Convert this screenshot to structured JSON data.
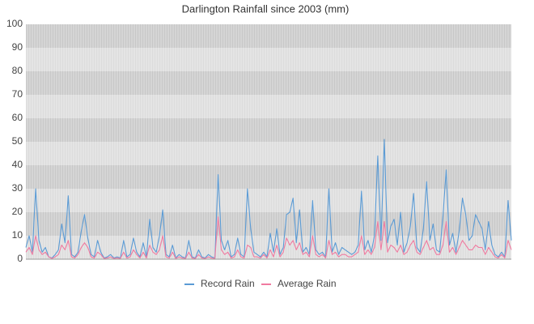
{
  "chart_data": {
    "type": "line",
    "title": "Darlington Rainfall since 2003 (mm)",
    "ylim": [
      0,
      100
    ],
    "yticks": [
      0,
      10,
      20,
      30,
      40,
      50,
      60,
      70,
      80,
      90,
      100
    ],
    "grid": true,
    "legend": "bottom",
    "series": [
      {
        "name": "Record Rain",
        "color": "#5b9bd5",
        "values": [
          5,
          10,
          3,
          30,
          8,
          3,
          5,
          1,
          0.5,
          2,
          4,
          15,
          7,
          27,
          2,
          1,
          3,
          12,
          19,
          9,
          2,
          1,
          8,
          3,
          0.5,
          1,
          2,
          0.5,
          1,
          0.5,
          8,
          1,
          2,
          9,
          3,
          1,
          7,
          1,
          17,
          5,
          3,
          10,
          21,
          2,
          1,
          6,
          0.5,
          2,
          1,
          0.5,
          8,
          1,
          0.5,
          4,
          1,
          0.5,
          2,
          1,
          0.5,
          36,
          8,
          4,
          8,
          1,
          2,
          9,
          2,
          1,
          30,
          13,
          3,
          2,
          1,
          3,
          1,
          11,
          3,
          13,
          2,
          5,
          19,
          20,
          26,
          7,
          21,
          3,
          5,
          2,
          25,
          4,
          2,
          3,
          1,
          30,
          3,
          7,
          2,
          5,
          4,
          3,
          2,
          3,
          6,
          29,
          4,
          8,
          3,
          10,
          44,
          8,
          51,
          7,
          14,
          17,
          6,
          20,
          3,
          7,
          14,
          28,
          5,
          3,
          13,
          33,
          8,
          15,
          4,
          3,
          18,
          38,
          6,
          11,
          3,
          12,
          26,
          19,
          8,
          10,
          19,
          16,
          13,
          4,
          16,
          6,
          2,
          1,
          3,
          1,
          25,
          8
        ]
      },
      {
        "name": "Average Rain",
        "color": "#f07aa0",
        "values": [
          3,
          5,
          2,
          10,
          4,
          2,
          3,
          1,
          0.3,
          1,
          2,
          6,
          4,
          8,
          1,
          0.5,
          2,
          5,
          7,
          5,
          1,
          0.5,
          3,
          2,
          0.3,
          0.5,
          1,
          0.3,
          0.5,
          0.3,
          3,
          0.5,
          1,
          4,
          2,
          0.5,
          3,
          0.5,
          6,
          3,
          2,
          4,
          10,
          1,
          0.5,
          3,
          0.3,
          1,
          0.5,
          0.3,
          3,
          0.5,
          0.3,
          2,
          0.5,
          0.3,
          1,
          0.5,
          0.3,
          18,
          4,
          2,
          3,
          0.5,
          1,
          4,
          1,
          0.5,
          6,
          5,
          1,
          1,
          0.5,
          2,
          0.5,
          4,
          1,
          6,
          1,
          3,
          9,
          6,
          8,
          4,
          7,
          2,
          3,
          1,
          10,
          2,
          1,
          2,
          0.5,
          8,
          2,
          3,
          1,
          2,
          2,
          1,
          1,
          2,
          3,
          10,
          2,
          4,
          2,
          5,
          16,
          4,
          16,
          3,
          6,
          5,
          3,
          6,
          2,
          3,
          6,
          8,
          3,
          2,
          5,
          8,
          4,
          5,
          2,
          2,
          6,
          16,
          3,
          5,
          2,
          5,
          8,
          6,
          4,
          4,
          6,
          5,
          5,
          2,
          5,
          3,
          1,
          0.5,
          2,
          0.5,
          8,
          4
        ]
      }
    ]
  }
}
